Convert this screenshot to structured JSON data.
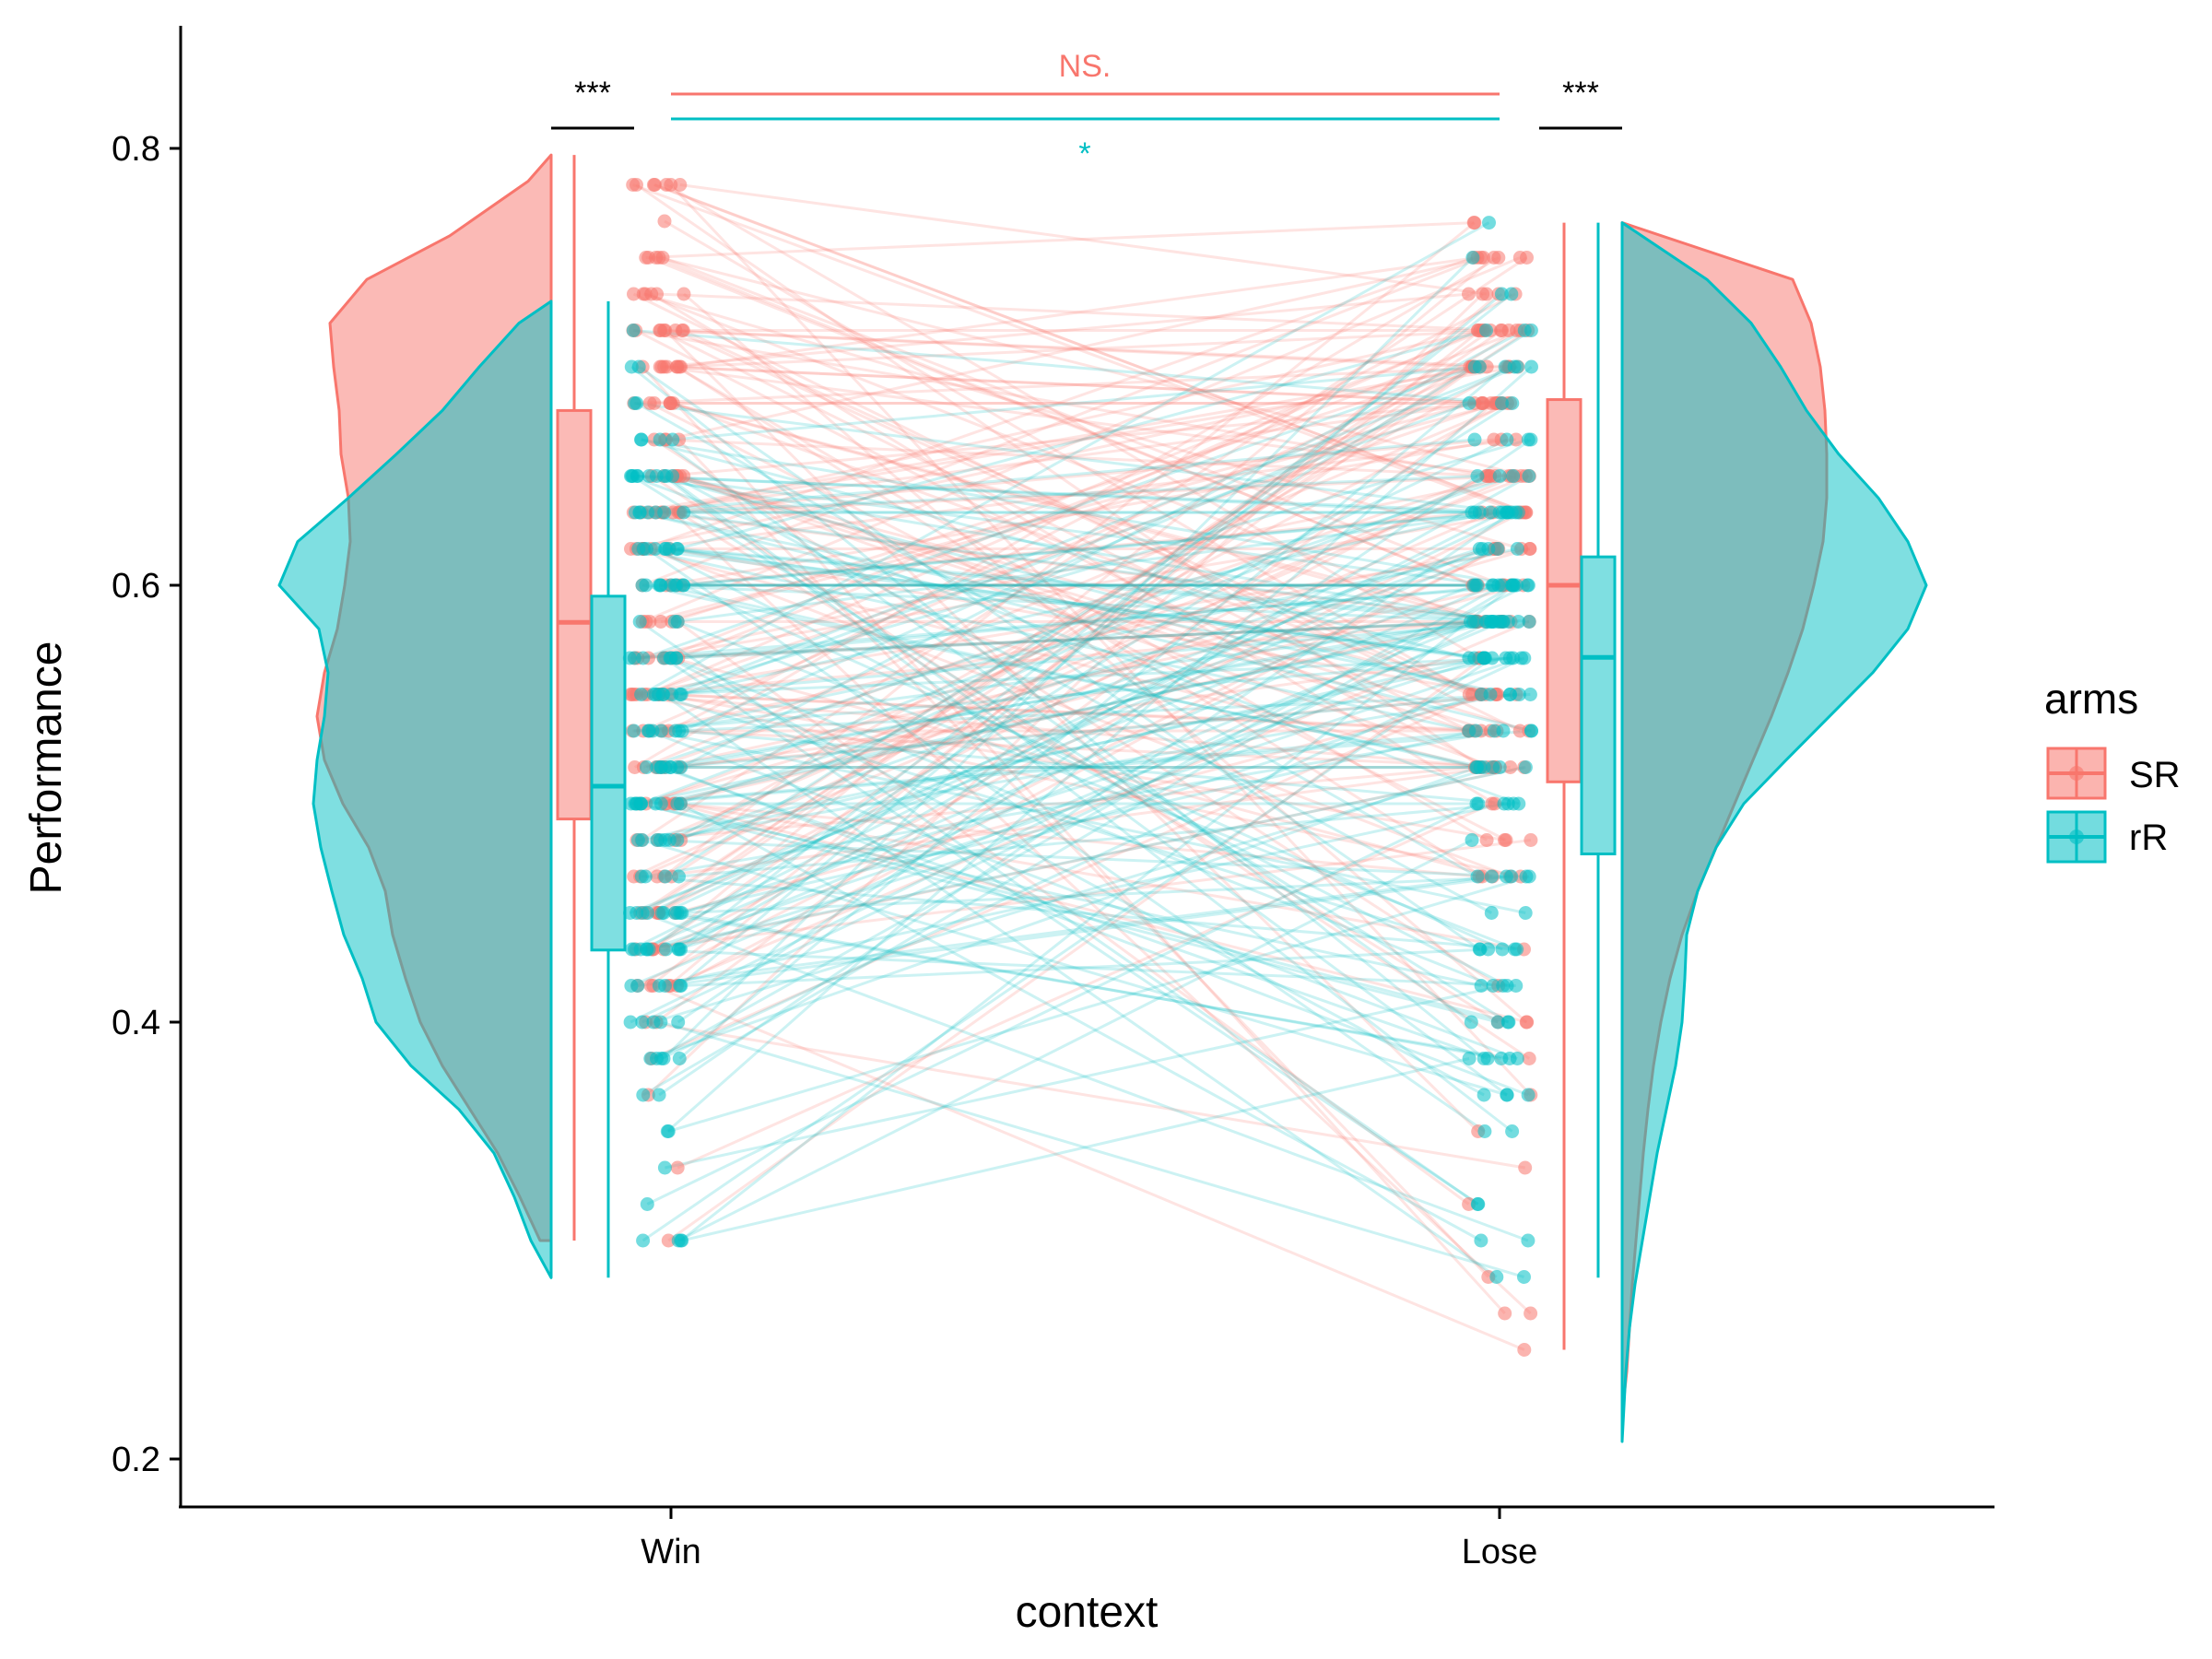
{
  "chart_data": {
    "type": "raincloud",
    "title": "",
    "xlabel": "context",
    "ylabel": "Performance",
    "categories": [
      "Win",
      "Lose"
    ],
    "ylim": [
      0.18,
      0.86
    ],
    "yticks": [
      0.2,
      0.4,
      0.6,
      0.8
    ],
    "ytick_labels": [
      "0.2",
      "0.4",
      "0.6",
      "0.8"
    ],
    "grid": false,
    "legend": {
      "title": "arms",
      "position": "right",
      "entries": [
        {
          "label": "SR",
          "color": "#F8766D"
        },
        {
          "label": "rR",
          "color": "#00BFC4"
        }
      ]
    },
    "series": [
      {
        "name": "SR",
        "color": "#F8766D",
        "boxplot": {
          "Win": {
            "min": 0.3,
            "q1": 0.493,
            "median": 0.583,
            "q3": 0.68,
            "max": 0.797
          },
          "Lose": {
            "min": 0.25,
            "q1": 0.51,
            "median": 0.6,
            "q3": 0.685,
            "max": 0.766
          }
        },
        "density_range": {
          "Win": [
            0.3,
            0.797
          ],
          "Lose": [
            0.22,
            0.766
          ]
        }
      },
      {
        "name": "rR",
        "color": "#00BFC4",
        "boxplot": {
          "Win": {
            "min": 0.283,
            "q1": 0.433,
            "median": 0.508,
            "q3": 0.595,
            "max": 0.73
          },
          "Lose": {
            "min": 0.283,
            "q1": 0.477,
            "median": 0.567,
            "q3": 0.613,
            "max": 0.766
          }
        },
        "density_range": {
          "Win": [
            0.283,
            0.73
          ],
          "Lose": [
            0.208,
            0.766
          ]
        }
      }
    ],
    "annotations": [
      {
        "text": "***",
        "between": "SR vs rR",
        "context": "Win",
        "color": "#000000"
      },
      {
        "text": "***",
        "between": "SR vs rR",
        "context": "Lose",
        "color": "#000000"
      },
      {
        "text": "NS.",
        "between": "Win vs Lose",
        "series": "SR",
        "color": "#F8766D"
      },
      {
        "text": "*",
        "between": "Win vs Lose",
        "series": "rR",
        "color": "#00BFC4"
      }
    ]
  }
}
